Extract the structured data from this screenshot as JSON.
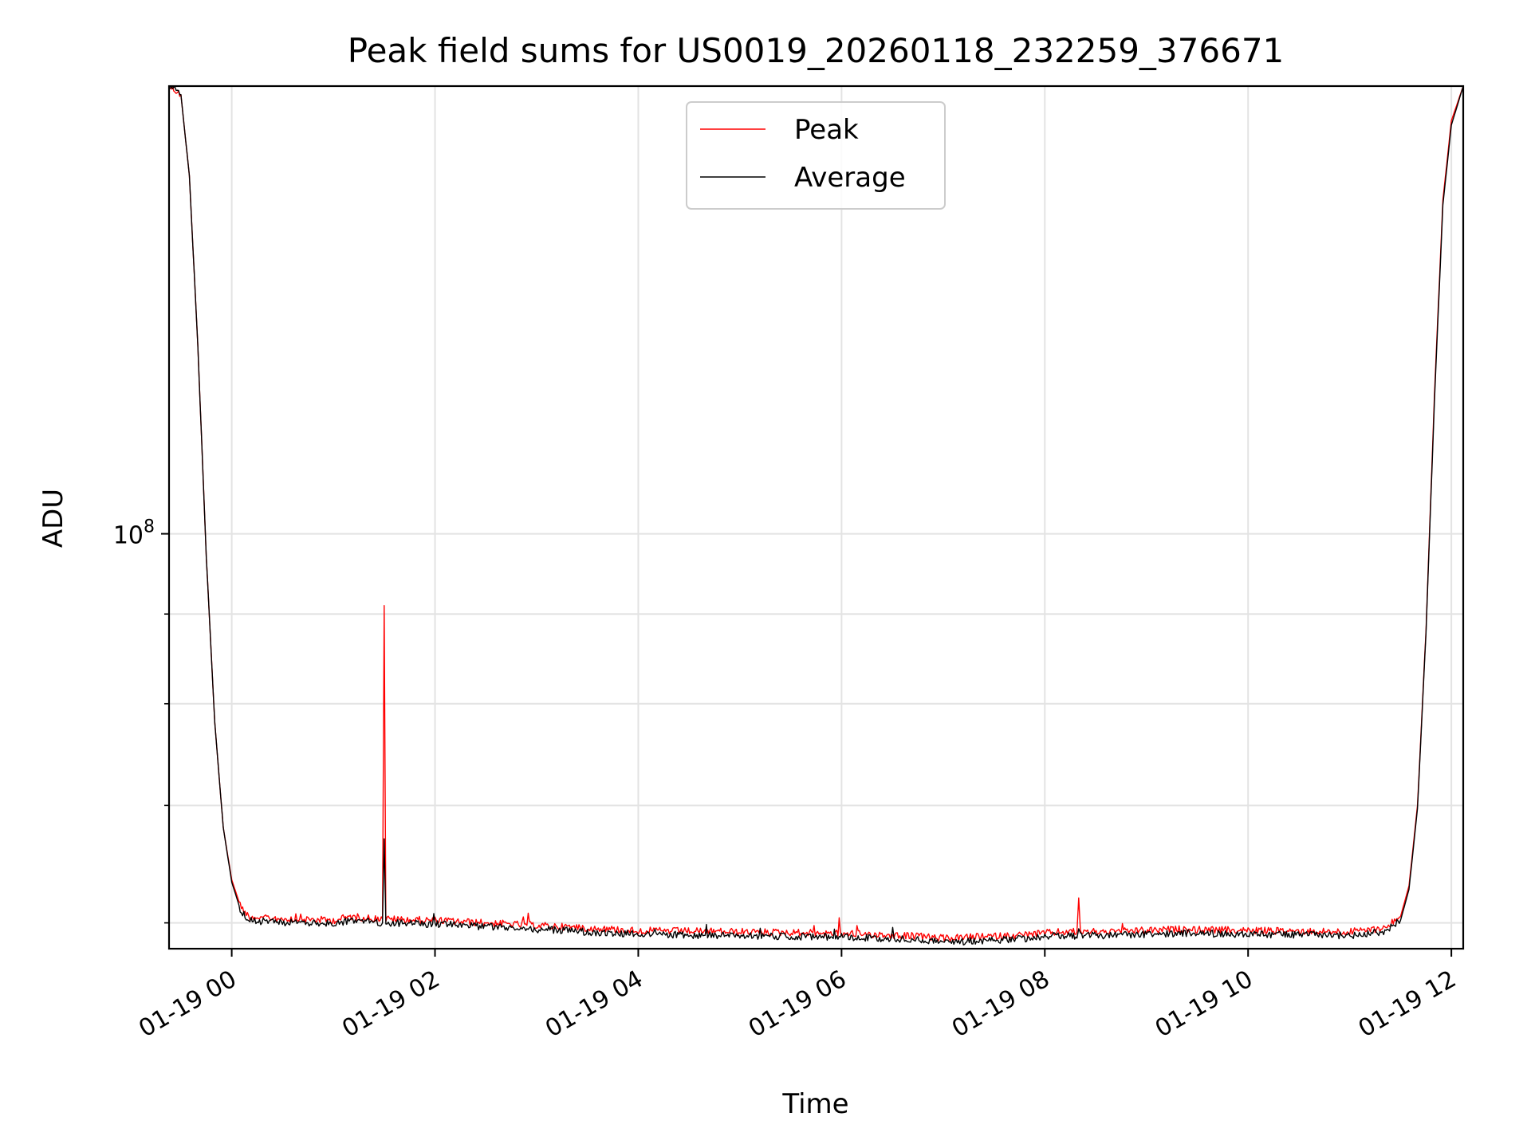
{
  "chart_data": {
    "type": "line",
    "title": "Peak field sums for US0019_20260118_232259_376671",
    "xlabel": "Time",
    "ylabel": "ADU",
    "x_axis": {
      "type": "datetime",
      "range": [
        "2026-01-18 23:23",
        "2026-01-19 12:07"
      ],
      "ticks": [
        {
          "value": "2026-01-19 00:00",
          "label": "01-19 00"
        },
        {
          "value": "2026-01-19 02:00",
          "label": "01-19 02"
        },
        {
          "value": "2026-01-19 04:00",
          "label": "01-19 04"
        },
        {
          "value": "2026-01-19 06:00",
          "label": "01-19 06"
        },
        {
          "value": "2026-01-19 08:00",
          "label": "01-19 08"
        },
        {
          "value": "2026-01-19 10:00",
          "label": "01-19 10"
        },
        {
          "value": "2026-01-19 12:00",
          "label": "01-19 12"
        }
      ]
    },
    "y_axis": {
      "scale": "log",
      "range": [
        58000000,
        180000000
      ],
      "major_ticks": [
        {
          "value": 100000000,
          "label_base": "10",
          "label_exp": "8"
        }
      ],
      "minor_ticks": [
        60000000,
        70000000,
        80000000,
        90000000,
        200000000
      ]
    },
    "grid": true,
    "legend": {
      "placement": "upper center",
      "entries": [
        {
          "name": "Peak",
          "color": "#ff0000"
        },
        {
          "name": "Average",
          "color": "#000000"
        }
      ]
    },
    "series": [
      {
        "name": "Peak",
        "color": "#ff0000",
        "points": [
          [
            "2026-01-18 23:23",
            180000000
          ],
          [
            "2026-01-18 23:30",
            178000000
          ],
          [
            "2026-01-18 23:35",
            160000000
          ],
          [
            "2026-01-18 23:40",
            128000000
          ],
          [
            "2026-01-18 23:45",
            97000000
          ],
          [
            "2026-01-18 23:50",
            78000000
          ],
          [
            "2026-01-18 23:55",
            68000000
          ],
          [
            "2026-01-19 00:00",
            63500000
          ],
          [
            "2026-01-19 00:05",
            61400000
          ],
          [
            "2026-01-19 00:10",
            60500000
          ],
          [
            "2026-01-19 00:20",
            60400000
          ],
          [
            "2026-01-19 00:40",
            60300000
          ],
          [
            "2026-01-19 01:00",
            60200000
          ],
          [
            "2026-01-19 01:10",
            60500000
          ],
          [
            "2026-01-19 01:20",
            60400000
          ],
          [
            "2026-01-19 01:29",
            60300000
          ],
          [
            "2026-01-19 01:30",
            91000000
          ],
          [
            "2026-01-19 01:31",
            60300000
          ],
          [
            "2026-01-19 02:00",
            60200000
          ],
          [
            "2026-01-19 02:30",
            60000000
          ],
          [
            "2026-01-19 03:00",
            59800000
          ],
          [
            "2026-01-19 03:30",
            59600000
          ],
          [
            "2026-01-19 04:00",
            59400000
          ],
          [
            "2026-01-19 05:00",
            59300000
          ],
          [
            "2026-01-19 06:00",
            59200000
          ],
          [
            "2026-01-19 06:40",
            59000000
          ],
          [
            "2026-01-19 07:00",
            58800000
          ],
          [
            "2026-01-19 07:40",
            59000000
          ],
          [
            "2026-01-19 08:10",
            59300000
          ],
          [
            "2026-01-19 08:19",
            59300000
          ],
          [
            "2026-01-19 08:20",
            62000000
          ],
          [
            "2026-01-19 08:21",
            59300000
          ],
          [
            "2026-01-19 09:00",
            59400000
          ],
          [
            "2026-01-19 09:20",
            59500000
          ],
          [
            "2026-01-19 10:00",
            59400000
          ],
          [
            "2026-01-19 11:00",
            59300000
          ],
          [
            "2026-01-19 11:20",
            59600000
          ],
          [
            "2026-01-19 11:30",
            60500000
          ],
          [
            "2026-01-19 11:35",
            63000000
          ],
          [
            "2026-01-19 11:40",
            70000000
          ],
          [
            "2026-01-19 11:45",
            88000000
          ],
          [
            "2026-01-19 11:50",
            120000000
          ],
          [
            "2026-01-19 11:55",
            155000000
          ],
          [
            "2026-01-19 12:00",
            172000000
          ],
          [
            "2026-01-19 12:07",
            180000000
          ]
        ]
      },
      {
        "name": "Average",
        "color": "#000000",
        "points": [
          [
            "2026-01-18 23:23",
            180000000
          ],
          [
            "2026-01-18 23:30",
            178000000
          ],
          [
            "2026-01-18 23:35",
            160000000
          ],
          [
            "2026-01-18 23:40",
            128000000
          ],
          [
            "2026-01-18 23:45",
            97000000
          ],
          [
            "2026-01-18 23:50",
            78000000
          ],
          [
            "2026-01-18 23:55",
            68000000
          ],
          [
            "2026-01-19 00:00",
            63300000
          ],
          [
            "2026-01-19 00:05",
            61100000
          ],
          [
            "2026-01-19 00:10",
            60200000
          ],
          [
            "2026-01-19 00:20",
            60100000
          ],
          [
            "2026-01-19 00:40",
            60000000
          ],
          [
            "2026-01-19 01:00",
            59900000
          ],
          [
            "2026-01-19 01:10",
            60200000
          ],
          [
            "2026-01-19 01:20",
            60100000
          ],
          [
            "2026-01-19 01:29",
            60000000
          ],
          [
            "2026-01-19 01:30",
            67000000
          ],
          [
            "2026-01-19 01:31",
            60000000
          ],
          [
            "2026-01-19 02:00",
            59900000
          ],
          [
            "2026-01-19 02:30",
            59700000
          ],
          [
            "2026-01-19 03:00",
            59500000
          ],
          [
            "2026-01-19 03:30",
            59300000
          ],
          [
            "2026-01-19 04:00",
            59100000
          ],
          [
            "2026-01-19 05:00",
            59000000
          ],
          [
            "2026-01-19 06:00",
            58900000
          ],
          [
            "2026-01-19 06:40",
            58700000
          ],
          [
            "2026-01-19 07:00",
            58500000
          ],
          [
            "2026-01-19 07:40",
            58700000
          ],
          [
            "2026-01-19 08:10",
            59000000
          ],
          [
            "2026-01-19 08:19",
            59000000
          ],
          [
            "2026-01-19 08:20",
            59600000
          ],
          [
            "2026-01-19 08:21",
            59000000
          ],
          [
            "2026-01-19 09:00",
            59100000
          ],
          [
            "2026-01-19 09:20",
            59200000
          ],
          [
            "2026-01-19 10:00",
            59100000
          ],
          [
            "2026-01-19 11:00",
            59000000
          ],
          [
            "2026-01-19 11:20",
            59300000
          ],
          [
            "2026-01-19 11:30",
            60200000
          ],
          [
            "2026-01-19 11:35",
            62700000
          ],
          [
            "2026-01-19 11:40",
            69700000
          ],
          [
            "2026-01-19 11:45",
            87700000
          ],
          [
            "2026-01-19 11:50",
            119000000
          ],
          [
            "2026-01-19 11:55",
            154000000
          ],
          [
            "2026-01-19 12:00",
            171000000
          ],
          [
            "2026-01-19 12:07",
            180000000
          ]
        ]
      }
    ]
  }
}
